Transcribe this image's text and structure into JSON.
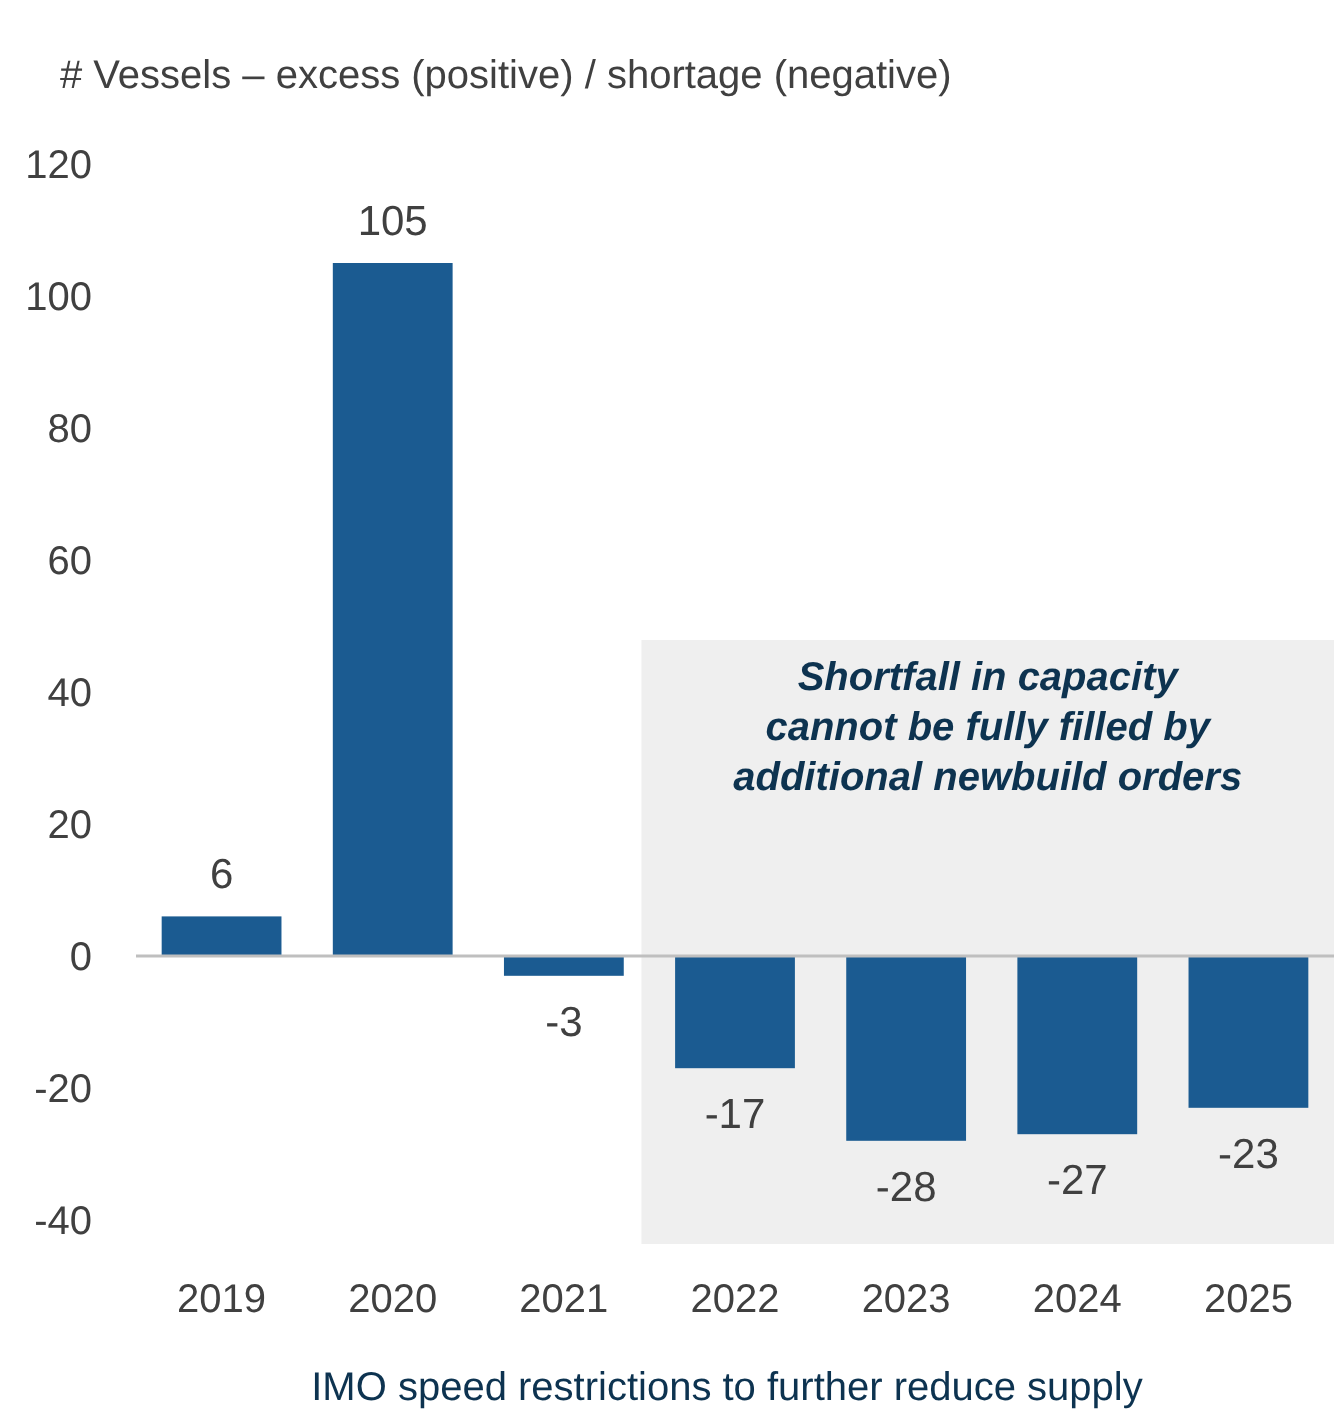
{
  "chart_data": {
    "type": "bar",
    "ylabel": "# Vessels – excess (positive) / shortage (negative)",
    "categories": [
      "2019",
      "2020",
      "2021",
      "2022",
      "2023",
      "2024",
      "2025"
    ],
    "values": [
      6,
      105,
      -3,
      -17,
      -28,
      -27,
      -23
    ],
    "color": "#1b5b91",
    "ylim": [
      -40,
      120
    ],
    "yticks": [
      -40,
      -20,
      0,
      20,
      40,
      60,
      80,
      100,
      120
    ],
    "data_labels": true,
    "bands": [
      {
        "axis": "x",
        "from": "2022",
        "to": "2025",
        "label": "Shortfall in capacity cannot be fully filled by additional newbuild orders",
        "color": "#efefef"
      }
    ],
    "annotations": [
      "IMO speed restrictions to further reduce supply"
    ]
  }
}
